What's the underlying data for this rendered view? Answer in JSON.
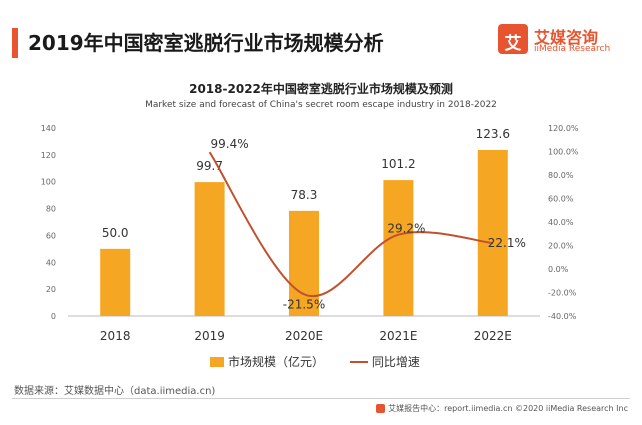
{
  "page": {
    "title": "2019年中国密室逃脱行业市场规模分析",
    "source": "数据来源：艾媒数据中心（data.iimedia.cn)",
    "footer": "艾媒报告中心：report.iimedia.cn   ©2020  iiMedia Research  Inc"
  },
  "brand": {
    "logo_char": "艾",
    "name_cn": "艾媒咨询",
    "name_en": "iiMedia Research",
    "color": "#e8542f"
  },
  "chart_data": {
    "type": "bar+line",
    "title": "2018-2022年中国密室逃脱行业市场规模及预测",
    "subtitle": "Market size and forecast of China's secret room escape industry in 2018-2022",
    "categories": [
      "2018",
      "2019",
      "2020E",
      "2021E",
      "2022E"
    ],
    "series": [
      {
        "name": "市场规模（亿元）",
        "type": "bar",
        "axis": "left",
        "values": [
          50.0,
          99.7,
          78.3,
          101.2,
          123.6
        ],
        "labels": [
          "50.0",
          "99.7",
          "78.3",
          "101.2",
          "123.6"
        ],
        "color": "#f5a623"
      },
      {
        "name": "同比增速",
        "type": "line",
        "axis": "right",
        "values": [
          null,
          99.4,
          -21.5,
          29.2,
          22.1
        ],
        "labels": [
          "",
          "99.4%",
          "-21.5%",
          "29.2%",
          "22.1%"
        ],
        "color": "#c0512f"
      }
    ],
    "y_left": {
      "min": 0,
      "max": 140,
      "ticks": [
        "0",
        "20",
        "40",
        "60",
        "80",
        "100",
        "120",
        "140"
      ]
    },
    "y_right": {
      "min": -40,
      "max": 120,
      "ticks": [
        "-40.0%",
        "-20.0%",
        "0.0%",
        "20.0%",
        "40.0%",
        "60.0%",
        "80.0%",
        "100.0%",
        "120.0%"
      ]
    },
    "legend": [
      "市场规模（亿元）",
      "同比增速"
    ]
  }
}
